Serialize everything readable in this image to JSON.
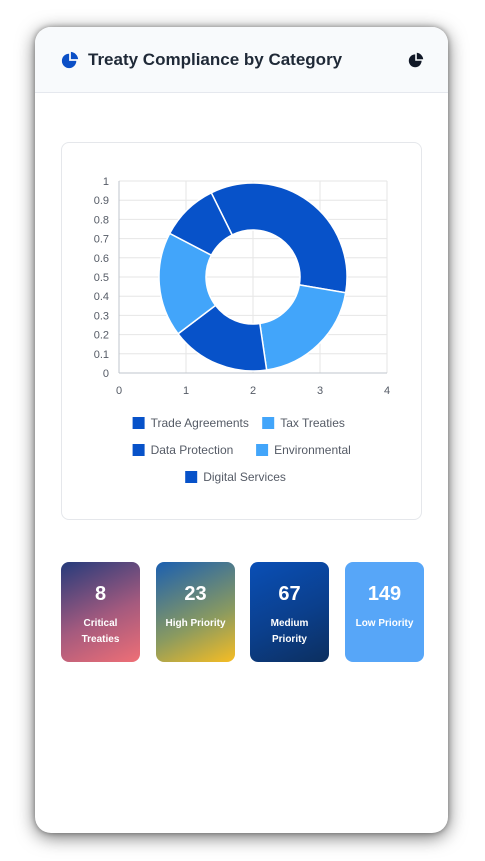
{
  "header": {
    "title": "Treaty Compliance by Category",
    "icon": "chart-pie-icon",
    "menu_icon": "chart-pie-icon"
  },
  "chart_data": {
    "type": "pie",
    "variant": "doughnut",
    "xlim": [
      0,
      4
    ],
    "ylim": [
      0,
      1
    ],
    "x_ticks": [
      "0",
      "1",
      "2",
      "3",
      "4"
    ],
    "y_ticks": [
      "0",
      "0.1",
      "0.2",
      "0.3",
      "0.4",
      "0.5",
      "0.6",
      "0.7",
      "0.8",
      "0.9",
      "1"
    ],
    "grid": true,
    "legend_position": "bottom",
    "categories": [
      "Trade Agreements",
      "Tax Treaties",
      "Data Protection",
      "Environmental",
      "Digital Services"
    ],
    "values": [
      35,
      20,
      17,
      18,
      10
    ],
    "colors": [
      "#0752c9",
      "#42a5fa",
      "#0752c9",
      "#42a5fa",
      "#0752c9"
    ]
  },
  "stats": [
    {
      "value": "8",
      "label": "Critical Treaties"
    },
    {
      "value": "23",
      "label": "High Priority"
    },
    {
      "value": "67",
      "label": "Medium Priority"
    },
    {
      "value": "149",
      "label": "Low Priority"
    }
  ]
}
